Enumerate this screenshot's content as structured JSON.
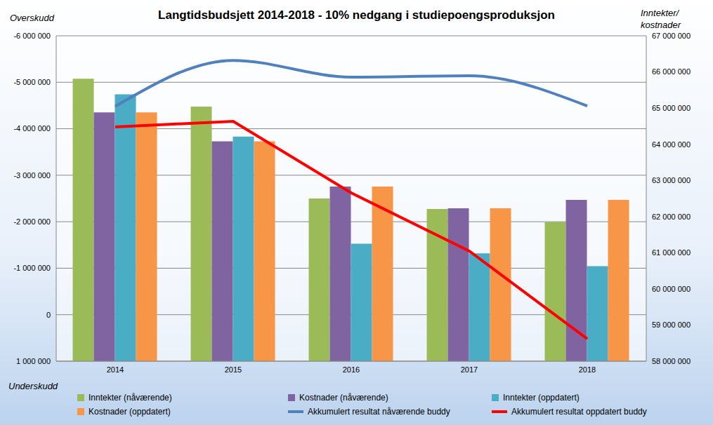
{
  "chart_data": {
    "type": "bar",
    "title": "Langtidsbudsjett 2014-2018 - 10% nedgang i studiepoengsproduksjon",
    "ylabel_top": "Overskudd",
    "ylabel_bottom": "Underskudd",
    "y2label": "Inntekter/ kostnader",
    "categories": [
      "2014",
      "2015",
      "2016",
      "2017",
      "2018"
    ],
    "series": [
      {
        "name": "Inntekter (nåværende)",
        "type": "bar",
        "axis": "y2",
        "color": "#9bbb59",
        "values": [
          65810000,
          65040000,
          62500000,
          62210000,
          61850000
        ]
      },
      {
        "name": "Kostnader (nåværende)",
        "type": "bar",
        "axis": "y2",
        "color": "#8064a2",
        "values": [
          64880000,
          64080000,
          62830000,
          62230000,
          62460000
        ]
      },
      {
        "name": "Inntekter (oppdatert)",
        "type": "bar",
        "axis": "y2",
        "color": "#4bacc6",
        "values": [
          65380000,
          64210000,
          61250000,
          60980000,
          60630000
        ]
      },
      {
        "name": "Kostnader (oppdatert)",
        "type": "bar",
        "axis": "y2",
        "color": "#f79646",
        "values": [
          64880000,
          64080000,
          62830000,
          62230000,
          62460000
        ]
      },
      {
        "name": "Akkumulert resultat nåværende buddy",
        "type": "line",
        "color": "#4f81bd",
        "line_style": "smooth",
        "marker": "none",
        "values": [
          -4480000,
          -5470000,
          -5110000,
          -5140000,
          -4490000
        ]
      },
      {
        "name": "Akkumulert resultat oppdatert buddy",
        "type": "line",
        "color": "#ff0000",
        "line_style": "solid",
        "marker": "none",
        "values": [
          -4040000,
          -4160000,
          -2620000,
          -1370000,
          520000
        ]
      }
    ],
    "ylim": [
      1000000,
      -6000000
    ],
    "yticks": [
      {
        "value": -6000000,
        "label": "-6 000 000"
      },
      {
        "value": -5000000,
        "label": "-5 000 000"
      },
      {
        "value": -4000000,
        "label": "-4 000 000"
      },
      {
        "value": -3000000,
        "label": "-3 000 000"
      },
      {
        "value": -2000000,
        "label": "-2 000 000"
      },
      {
        "value": -1000000,
        "label": "-1 000 000"
      },
      0,
      {
        "value": 1000000,
        "label": "1 000 000"
      }
    ],
    "y2lim": [
      58000000,
      67000000
    ],
    "y2ticks": [
      {
        "value": 58000000,
        "label": "58 000 000"
      },
      {
        "value": 59000000,
        "label": "59 000 000"
      },
      {
        "value": 60000000,
        "label": "60 000 000"
      },
      {
        "value": 61000000,
        "label": "61 000 000"
      },
      {
        "value": 62000000,
        "label": "62 000 000"
      },
      {
        "value": 63000000,
        "label": "63 000 000"
      },
      {
        "value": 64000000,
        "label": "64 000 000"
      },
      {
        "value": 65000000,
        "label": "65 000 000"
      },
      {
        "value": 66000000,
        "label": "66 000 000"
      },
      {
        "value": 67000000,
        "label": "67 000 000"
      }
    ],
    "grid": true,
    "legend": "bottom"
  }
}
